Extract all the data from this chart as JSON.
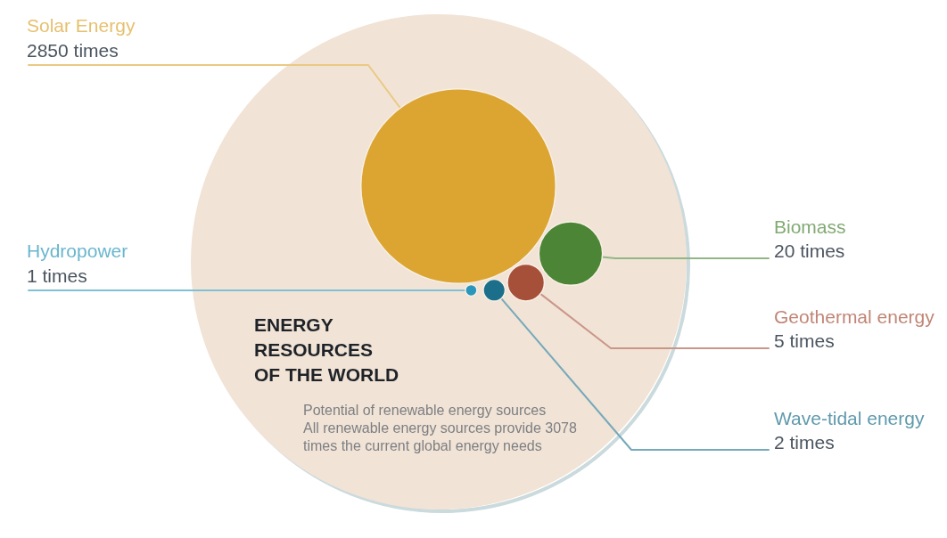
{
  "chart_data": {
    "type": "other",
    "title": "ENERGY RESOURCES OF THE WORLD",
    "subtitle": "Potential of renewable energy sources",
    "categories": [
      "Solar Energy",
      "Biomass",
      "Geothermal energy",
      "Wave-tidal energy",
      "Hydropower"
    ],
    "values": [
      2850,
      20,
      5,
      2,
      1
    ],
    "value_labels": [
      "2850 times",
      "20 times",
      "5 times",
      "2 times",
      "1 times"
    ],
    "colors": [
      "#dca531",
      "#4b8535",
      "#a6503a",
      "#1b6f8a",
      "#2a96bb"
    ],
    "annotations": [
      "All renewable energy sources provide 3078 times the current global energy needs"
    ]
  }
}
